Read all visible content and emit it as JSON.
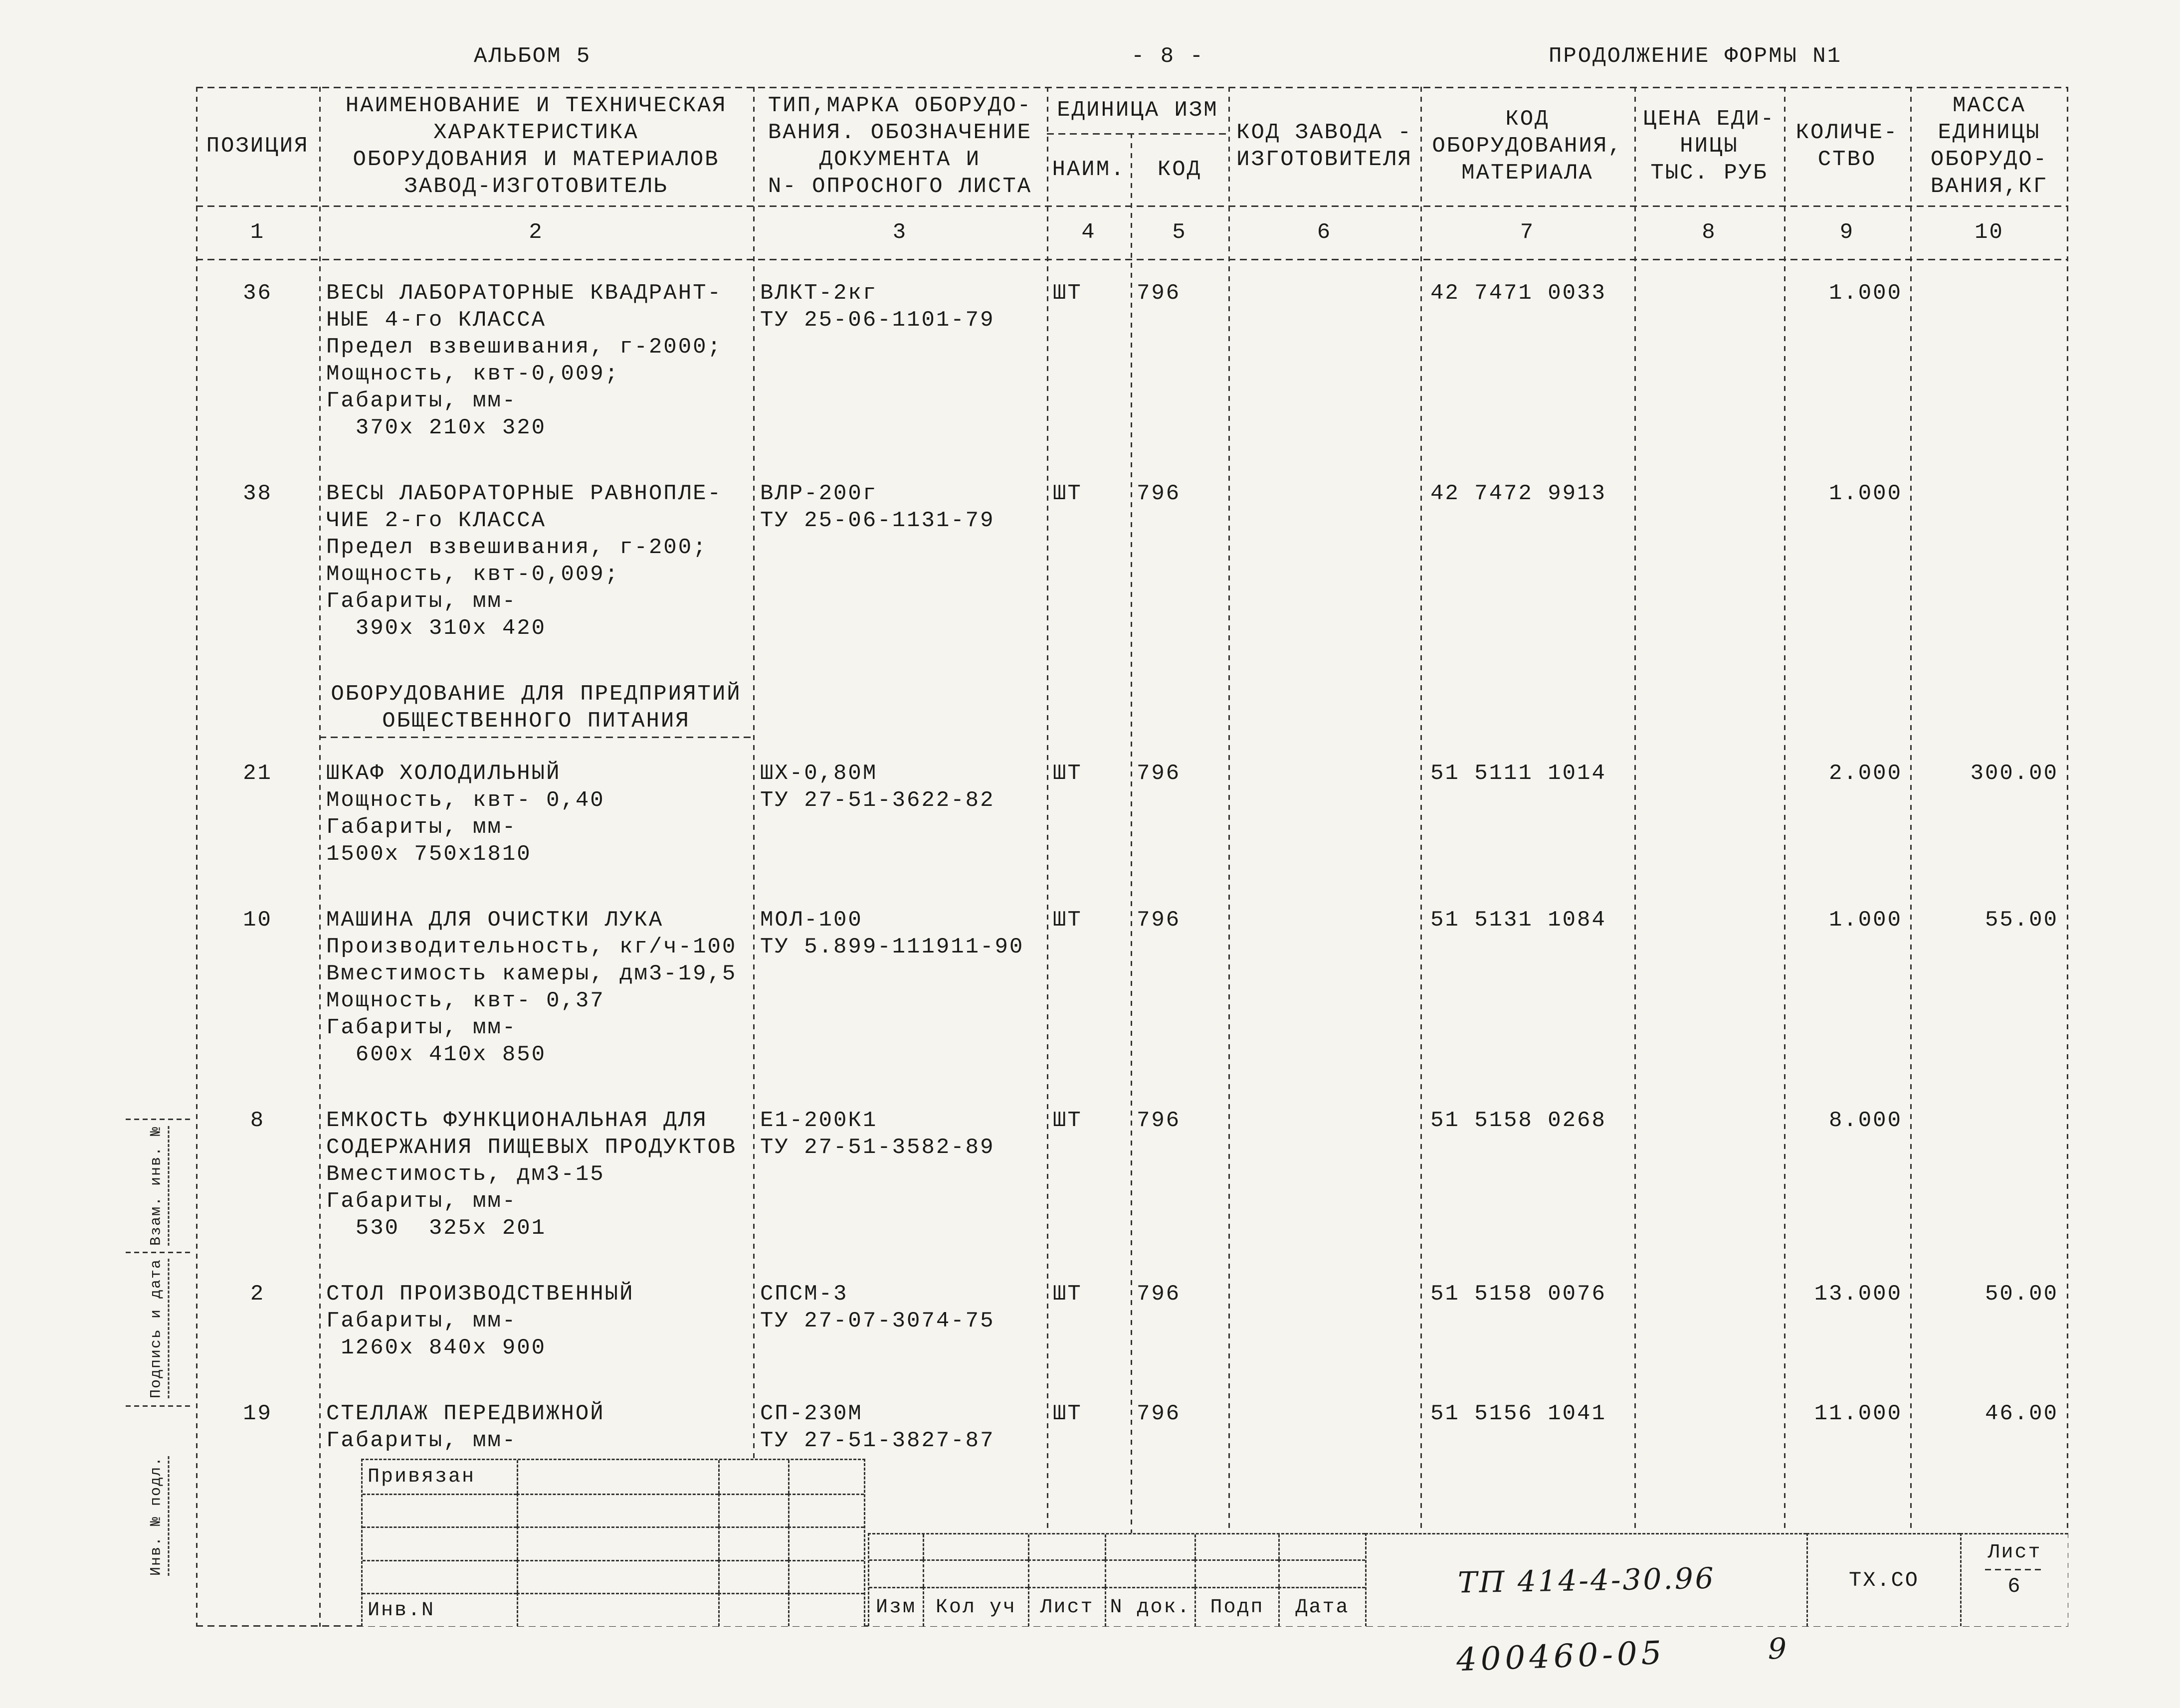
{
  "page_header": {
    "left": "АЛЬБОМ 5",
    "center": "- 8 -",
    "right": "ПРОДОЛЖЕНИЕ ФОРМЫ N1"
  },
  "table": {
    "header": {
      "c1": "ПОЗИЦИЯ",
      "c2": [
        "НАИМЕНОВАНИЕ И ТЕХНИЧЕСКАЯ",
        "ХАРАКТЕРИСТИКА",
        "ОБОРУДОВАНИЯ И МАТЕРИАЛОВ",
        "ЗАВОД-ИЗГОТОВИТЕЛЬ"
      ],
      "c3": [
        "ТИП,МАРКА ОБОРУДО-",
        "ВАНИЯ. ОБОЗНАЧЕНИЕ",
        "ДОКУМЕНТА И",
        "N- ОПРОСНОГО ЛИСТА"
      ],
      "c45": "ЕДИНИЦА ИЗМ",
      "c4": "НАИМ.",
      "c5": "КОД",
      "c6": [
        "КОД ЗАВОДА -",
        "ИЗГОТОВИТЕЛЯ"
      ],
      "c7": [
        "КОД",
        "ОБОРУДОВАНИЯ,",
        "МАТЕРИАЛА"
      ],
      "c8": [
        "ЦЕНА ЕДИ-",
        "НИЦЫ",
        "ТЫС. РУБ"
      ],
      "c9": [
        "КОЛИЧЕ-",
        "СТВО"
      ],
      "c10": [
        "МАССА",
        "ЕДИНИЦЫ",
        "ОБОРУДО-",
        "ВАНИЯ,КГ"
      ]
    },
    "col_numbers": [
      "1",
      "2",
      "3",
      "4",
      "5",
      "6",
      "7",
      "8",
      "9",
      "10"
    ],
    "rows": [
      {
        "pos": "36",
        "name": [
          "ВЕСЫ ЛАБОРАТОРНЫЕ КВАДРАНТ-",
          "НЫЕ 4-го КЛАССА",
          "Предел взвешивания, г-2000;",
          "Мощность, квт-0,009;",
          "Габариты, мм-",
          "  370х 210х 320"
        ],
        "type": [
          "ВЛКТ-2кг",
          "ТУ 25-06-1101-79"
        ],
        "unit": "ШТ",
        "unit_code": "796",
        "factory_code": "",
        "equip_code": "42 7471 0033",
        "price": "",
        "qty": "1.000",
        "mass": ""
      },
      {
        "pos": "38",
        "name": [
          "ВЕСЫ ЛАБОРАТОРНЫЕ РАВНОПЛЕ-",
          "ЧИЕ 2-го КЛАССА",
          "Предел взвешивания, г-200;",
          "Мощность, квт-0,009;",
          "Габариты, мм-",
          "  390х 310х 420"
        ],
        "type": [
          "ВЛР-200г",
          "ТУ 25-06-1131-79"
        ],
        "unit": "ШТ",
        "unit_code": "796",
        "factory_code": "",
        "equip_code": "42 7472 9913",
        "price": "",
        "qty": "1.000",
        "mass": ""
      },
      {
        "section": [
          "ОБОРУДОВАНИЕ ДЛЯ ПРЕДПРИЯТИЙ",
          "ОБЩЕСТВЕННОГО ПИТАНИЯ"
        ]
      },
      {
        "pos": "21",
        "name": [
          "ШКАФ ХОЛОДИЛЬНЫЙ",
          "Мощность, квт- 0,40",
          "Габариты, мм-",
          "1500х 750х1810"
        ],
        "type": [
          "ШХ-0,80М",
          "ТУ 27-51-3622-82"
        ],
        "unit": "ШТ",
        "unit_code": "796",
        "factory_code": "",
        "equip_code": "51 5111 1014",
        "price": "",
        "qty": "2.000",
        "mass": "300.00"
      },
      {
        "pos": "10",
        "name": [
          "МАШИНА ДЛЯ ОЧИСТКИ ЛУКА",
          "Производительность, кг/ч-100",
          "Вместимость камеры, дм3-19,5",
          "Мощность, квт- 0,37",
          "Габариты, мм-",
          "  600х 410х 850"
        ],
        "type": [
          "МОЛ-100",
          "ТУ 5.899-111911-90"
        ],
        "unit": "ШТ",
        "unit_code": "796",
        "factory_code": "",
        "equip_code": "51 5131 1084",
        "price": "",
        "qty": "1.000",
        "mass": "55.00"
      },
      {
        "pos": "8",
        "name": [
          "ЕМКОСТЬ ФУНКЦИОНАЛЬНАЯ ДЛЯ",
          "СОДЕРЖАНИЯ ПИЩЕВЫХ ПРОДУКТОВ",
          "Вместимость, дм3-15",
          "Габариты, мм-",
          "  530  325х 201"
        ],
        "type": [
          "Е1-200К1",
          "ТУ 27-51-3582-89"
        ],
        "unit": "ШТ",
        "unit_code": "796",
        "factory_code": "",
        "equip_code": "51 5158 0268",
        "price": "",
        "qty": "8.000",
        "mass": ""
      },
      {
        "pos": "2",
        "name": [
          "СТОЛ ПРОИЗВОДСТВЕННЫЙ",
          "Габариты, мм-",
          " 1260х 840х 900"
        ],
        "type": [
          "СПСМ-3",
          "ТУ 27-07-3074-75"
        ],
        "unit": "ШТ",
        "unit_code": "796",
        "factory_code": "",
        "equip_code": "51 5158 0076",
        "price": "",
        "qty": "13.000",
        "mass": "50.00"
      },
      {
        "pos": "19",
        "name": [
          "СТЕЛЛАЖ ПЕРЕДВИЖНОЙ",
          "Габариты, мм-"
        ],
        "type": [
          "СП-230М",
          "ТУ 27-51-3827-87"
        ],
        "unit": "ШТ",
        "unit_code": "796",
        "factory_code": "",
        "equip_code": "51 5156 1041",
        "price": "",
        "qty": "11.000",
        "mass": "46.00"
      }
    ]
  },
  "stamp": {
    "attached_label": "Привязан",
    "inv_label": "Инв.N",
    "bottom_labels": [
      "Изм",
      "Кол уч",
      "Лист",
      "N док.",
      "Подп",
      "Дата"
    ],
    "doc_number": "ТП 414-4-30.96",
    "dept_code": "ТХ.СО",
    "sheet_label": "Лист",
    "sheet_number": "6",
    "handwritten_number": "400460-05",
    "handwritten_page": "9"
  },
  "margin_labels": [
    "Взам. инв. №",
    "Подпись и дата",
    "Инв. № подл."
  ]
}
